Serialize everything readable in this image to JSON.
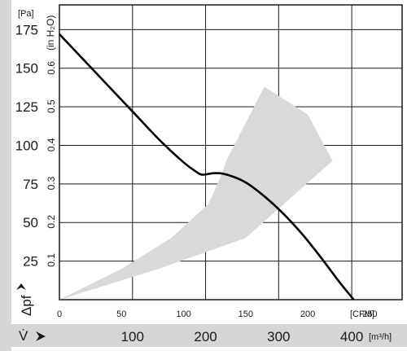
{
  "chart_data": {
    "type": "line",
    "title": "",
    "y_unit_left": "[Pa]",
    "y_unit_secondary": "(in H₂O)",
    "y_label": "Δpf",
    "x_label": "V̇",
    "x_unit_cfm": "[CFM]",
    "x_unit_m3h": "[m³/h]",
    "y_range_pa": [
      0,
      180
    ],
    "x_range_cfm": [
      0,
      250
    ],
    "y_ticks_pa": [
      "25",
      "50",
      "75",
      "100",
      "125",
      "150",
      "175"
    ],
    "y_ticks_inh2o": [
      "0.1",
      "0.2",
      "0.3",
      "0.4",
      "0.5",
      "0.6"
    ],
    "x_ticks_cfm": [
      "0",
      "50",
      "100",
      "150",
      "200",
      "250"
    ],
    "x_ticks_m3h": [
      "100",
      "200",
      "300",
      "400"
    ],
    "grid": true,
    "series": [
      {
        "color": "#000000",
        "x_cfm": [
          0,
          20,
          40,
          60,
          80,
          100,
          110,
          115,
          125,
          135,
          150,
          165,
          180,
          195,
          210,
          225,
          237
        ],
        "y_pa": [
          172,
          155,
          138,
          121,
          104,
          89,
          83,
          81,
          82,
          81,
          76,
          67,
          56,
          43,
          28,
          12,
          0
        ]
      }
    ],
    "operating_region": {
      "color": "#d9d9d9",
      "outline_cfm_pa": [
        [
          0,
          0
        ],
        [
          80,
          20
        ],
        [
          150,
          40
        ],
        [
          220,
          90
        ],
        [
          200,
          120
        ],
        [
          165,
          138
        ],
        [
          135,
          91
        ],
        [
          130,
          80
        ],
        [
          120,
          62
        ],
        [
          90,
          40
        ],
        [
          50,
          20
        ],
        [
          0,
          0
        ]
      ]
    }
  }
}
